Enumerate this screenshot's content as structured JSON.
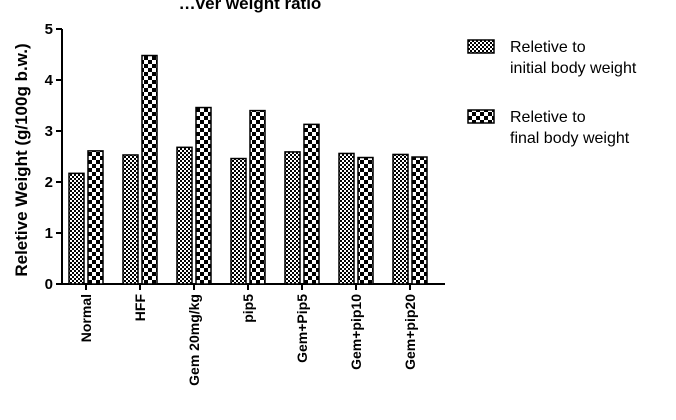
{
  "chart_data": {
    "type": "bar",
    "title": "…ver weight ratio",
    "xlabel": "",
    "ylabel": "Reletive Weight (g/100g b.w.)",
    "ylim": [
      0,
      5
    ],
    "yticks": [
      0,
      1,
      2,
      3,
      4,
      5
    ],
    "categories": [
      "Normal",
      "HFF",
      "Gem 20mg/kg",
      "pip5",
      "Gem+Pip5",
      "Gem+pip10",
      "Gem+pip20"
    ],
    "series": [
      {
        "name": "Reletive to initial body weight",
        "legend_lines": [
          "Reletive to",
          "initial body weight"
        ],
        "pattern": "fine-checker",
        "values": [
          2.17,
          2.53,
          2.68,
          2.46,
          2.59,
          2.56,
          2.54
        ]
      },
      {
        "name": "Reletive to final body weight",
        "legend_lines": [
          "Reletive to",
          "final body weight"
        ],
        "pattern": "coarse-checker",
        "values": [
          2.61,
          4.48,
          3.46,
          3.4,
          3.13,
          2.48,
          2.49
        ]
      }
    ],
    "grid": false,
    "legend_position": "right",
    "colors": {
      "foreground": "#000000",
      "background": "#ffffff"
    }
  }
}
